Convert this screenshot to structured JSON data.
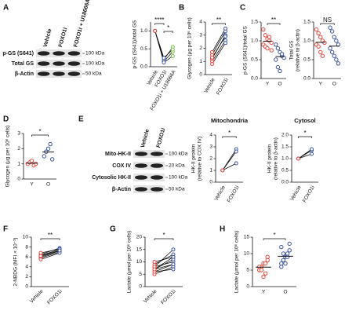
{
  "chart_data": [
    {
      "type": "paired",
      "ylabel": [
        "p-GS (S641)/total GS"
      ],
      "categories": [
        "Vehicle",
        "FOXO1i",
        "FOXO1i + U18666A"
      ],
      "colors": [
        "#e8443a",
        "#3b54a4",
        "#7cbf4b"
      ],
      "ylim": [
        0,
        1.25
      ],
      "yticks": [
        {
          "value": 0,
          "label": "0.0"
        },
        {
          "value": 0.5,
          "label": "0.5"
        },
        {
          "value": 1,
          "label": "1.0"
        }
      ],
      "series": [
        {
          "values": [
            1,
            0.15,
            0.42
          ]
        },
        {
          "values": [
            1,
            0.2,
            0.55
          ]
        },
        {
          "values": [
            1,
            0.12,
            0.3
          ]
        },
        {
          "values": [
            1,
            0.25,
            0.48
          ]
        }
      ],
      "significance": [
        {
          "label": "****",
          "between": [
            0,
            1
          ]
        },
        {
          "label": "*",
          "between": [
            1,
            2
          ]
        }
      ]
    },
    {
      "type": "paired",
      "panel": "B",
      "ylabel": [
        "Glycogen (μg per 10⁶ cells)"
      ],
      "categories": [
        "Vehicle",
        "FOXO1i"
      ],
      "colors": [
        "#e8443a",
        "#3b54a4"
      ],
      "ylim": [
        0,
        4
      ],
      "yticks": [
        0,
        1,
        2,
        3,
        4
      ],
      "series": [
        {
          "values": [
            1.0,
            2.6
          ]
        },
        {
          "values": [
            1.2,
            3.0
          ]
        },
        {
          "values": [
            1.5,
            3.3
          ]
        },
        {
          "values": [
            1.7,
            3.5
          ]
        },
        {
          "values": [
            1.3,
            2.9
          ]
        },
        {
          "values": [
            0.8,
            2.4
          ]
        }
      ],
      "significance": [
        {
          "label": "**",
          "between": [
            0,
            1
          ]
        }
      ]
    },
    {
      "type": "strip",
      "panel": "C",
      "ylabel": [
        "p-GS (S641)/total GS"
      ],
      "categories": [
        "Y",
        "O"
      ],
      "colors": [
        "#e8443a",
        "#3b54a4"
      ],
      "ylim": [
        0,
        1.5
      ],
      "yticks": [
        {
          "value": 0,
          "label": "0.0"
        },
        {
          "value": 0.5,
          "label": "0.5"
        },
        {
          "value": 1,
          "label": "1.0"
        },
        {
          "value": 1.5,
          "label": "1.5"
        }
      ],
      "values": [
        [
          1.3,
          1.15,
          1.05,
          1.0,
          0.95,
          0.9,
          0.85,
          0.8,
          1.1,
          0.75
        ],
        [
          0.9,
          0.8,
          0.7,
          0.6,
          0.55,
          0.5,
          0.3,
          0.2,
          0.65
        ]
      ],
      "means": [
        0.99,
        0.58
      ],
      "significance": [
        {
          "label": "**",
          "between": [
            0,
            1
          ]
        }
      ]
    },
    {
      "type": "strip",
      "ylabel": [
        "Total GS",
        "(relative to β-actin)"
      ],
      "categories": [
        "Y",
        "O"
      ],
      "colors": [
        "#e8443a",
        "#3b54a4"
      ],
      "ylim": [
        0,
        1.5
      ],
      "yticks": [
        {
          "value": 0,
          "label": "0.0"
        },
        {
          "value": 0.5,
          "label": "0.5"
        },
        {
          "value": 1,
          "label": "1.0"
        },
        {
          "value": 1.5,
          "label": "1.5"
        }
      ],
      "values": [
        [
          1.3,
          1.2,
          1.1,
          1.0,
          0.95,
          0.9,
          0.85,
          0.7,
          0.6
        ],
        [
          1.35,
          1.25,
          1.1,
          1.0,
          0.9,
          0.8,
          0.7,
          0.6,
          0.5,
          0.4
        ]
      ],
      "means": [
        0.96,
        0.86
      ],
      "significance": [
        {
          "label": "NS",
          "between": [
            0,
            1
          ]
        }
      ]
    },
    {
      "type": "strip",
      "panel": "D",
      "ylabel": [
        "Glycogen (μg per 10⁶ cells)"
      ],
      "categories": [
        "Y",
        "O"
      ],
      "colors": [
        "#e8443a",
        "#3b54a4"
      ],
      "ylim": [
        0,
        3
      ],
      "yticks": [
        0,
        1,
        2,
        3
      ],
      "values": [
        [
          1.0,
          1.1,
          1.2,
          0.9,
          1.0
        ],
        [
          1.5,
          1.8,
          2.0,
          2.3,
          1.3
        ]
      ],
      "means": [
        1.04,
        1.78
      ],
      "significance": [
        {
          "label": "*",
          "between": [
            0,
            1
          ]
        }
      ]
    },
    {
      "type": "paired",
      "title": "Mitochondria",
      "ylabel": [
        "HK-II protein",
        "(relative to COX IV)"
      ],
      "categories": [
        "Vehicle",
        "FOXO1i"
      ],
      "colors": [
        "#e8443a",
        "#3b54a4"
      ],
      "ylim": [
        0,
        4
      ],
      "yticks": [
        0,
        1,
        2,
        3,
        4
      ],
      "series": [
        {
          "values": [
            1,
            2.8
          ]
        },
        {
          "values": [
            1,
            2.6
          ]
        },
        {
          "values": [
            1,
            1.6
          ]
        }
      ],
      "significance": [
        {
          "label": "*",
          "between": [
            0,
            1
          ]
        }
      ]
    },
    {
      "type": "paired",
      "title": "Cytosol",
      "ylabel": [
        "HK-II protein",
        "(relative to β-actin)"
      ],
      "categories": [
        "Vehicle",
        "FOXO1i"
      ],
      "colors": [
        "#e8443a",
        "#3b54a4"
      ],
      "ylim": [
        0,
        2
      ],
      "yticks": [
        {
          "value": 0,
          "label": "0.0"
        },
        {
          "value": 0.5,
          "label": "0.5"
        },
        {
          "value": 1,
          "label": "1.0"
        },
        {
          "value": 1.5,
          "label": "1.5"
        },
        {
          "value": 2,
          "label": "2.0"
        }
      ],
      "series": [
        {
          "values": [
            1,
            1.35
          ]
        },
        {
          "values": [
            1,
            1.4
          ]
        },
        {
          "values": [
            1,
            1.2
          ]
        }
      ],
      "significance": [
        {
          "label": "*",
          "between": [
            0,
            1
          ]
        }
      ]
    },
    {
      "type": "paired",
      "panel": "F",
      "ylabel": [
        "2-NBDG (MFI × 10⁻³)"
      ],
      "categories": [
        "Vehicle",
        "FOXO1i"
      ],
      "colors": [
        "#e8443a",
        "#3b54a4"
      ],
      "ylim": [
        0,
        10
      ],
      "yticks": [
        0,
        2,
        4,
        6,
        8,
        10
      ],
      "series": [
        {
          "values": [
            6.0,
            7.2
          ]
        },
        {
          "values": [
            6.3,
            7.5
          ]
        },
        {
          "values": [
            5.8,
            7.0
          ]
        },
        {
          "values": [
            6.5,
            7.8
          ]
        },
        {
          "values": [
            6.8,
            7.6
          ]
        },
        {
          "values": [
            5.5,
            6.8
          ]
        },
        {
          "values": [
            6.2,
            7.3
          ]
        }
      ],
      "significance": [
        {
          "label": "**",
          "between": [
            0,
            1
          ]
        }
      ]
    },
    {
      "type": "paired",
      "panel": "G",
      "ylabel": [
        "Lactate (μmol per 10⁶ cells)"
      ],
      "categories": [
        "Vehicle",
        "FOXO1i"
      ],
      "colors": [
        "#e8443a",
        "#3b54a4"
      ],
      "ylim": [
        0,
        20
      ],
      "yticks": [
        0,
        5,
        10,
        15,
        20
      ],
      "series": [
        {
          "values": [
            7,
            12
          ]
        },
        {
          "values": [
            6,
            9
          ]
        },
        {
          "values": [
            8,
            10
          ]
        },
        {
          "values": [
            5,
            8
          ]
        },
        {
          "values": [
            9,
            13
          ]
        },
        {
          "values": [
            7,
            11
          ]
        },
        {
          "values": [
            6,
            7
          ]
        },
        {
          "values": [
            10,
            12
          ]
        },
        {
          "values": [
            8,
            15
          ]
        },
        {
          "values": [
            7,
            9
          ]
        }
      ],
      "significance": [
        {
          "label": "*",
          "between": [
            0,
            1
          ]
        }
      ]
    },
    {
      "type": "strip",
      "panel": "H",
      "ylabel": [
        "Lactate (μmol per 10⁶ cells)"
      ],
      "categories": [
        "Y",
        "O"
      ],
      "colors": [
        "#e8443a",
        "#3b54a4"
      ],
      "ylim": [
        0,
        15
      ],
      "yticks": [
        0,
        5,
        10,
        15
      ],
      "values": [
        [
          5,
          6,
          7,
          4,
          8,
          5,
          6,
          3,
          7,
          9,
          6,
          5
        ],
        [
          7,
          8,
          9,
          10,
          11,
          12,
          8,
          7,
          9,
          13,
          6,
          10
        ]
      ],
      "means": [
        5.9,
        9.2
      ],
      "significance": [
        {
          "label": "*",
          "between": [
            0,
            1
          ]
        }
      ]
    }
  ],
  "blots": [
    {
      "panel": "A",
      "lanes": [
        "Vehicle",
        "FOXO1i",
        "FOXO1i + U18666A"
      ],
      "rows": [
        {
          "label": "p-GS (S641)",
          "kda": "100 kDa"
        },
        {
          "label": "Total GS",
          "kda": "100 kDa"
        },
        {
          "label": "β-Actin",
          "kda": "50 kDa"
        }
      ]
    },
    {
      "panel": "E",
      "lanes": [
        "Vehicle",
        "FOXO1i"
      ],
      "rows": [
        {
          "label": "Mito-HK-II",
          "kda": "100 kDa"
        },
        {
          "label": "COX IV",
          "kda": "20 kDa"
        },
        {
          "label": "Cytosolic HK-II",
          "kda": "100 kDa"
        },
        {
          "label": "β-Actin",
          "kda": "50 kDa"
        }
      ]
    }
  ]
}
